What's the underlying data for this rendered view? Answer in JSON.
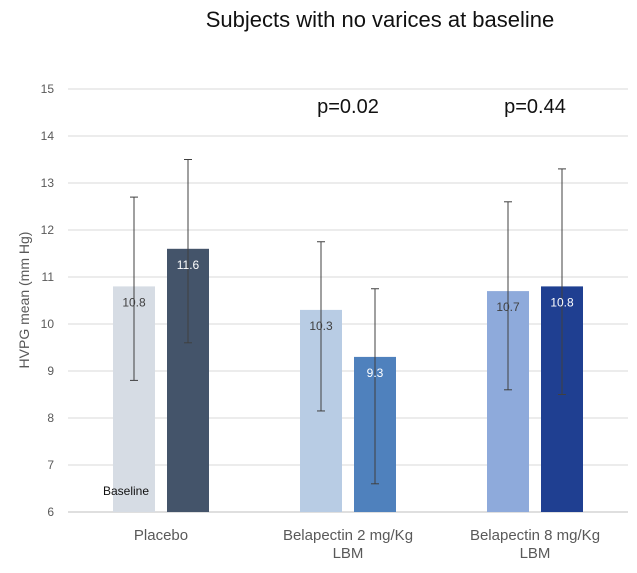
{
  "chart_data": {
    "type": "bar",
    "title": "Subjects with no varices at baseline",
    "ylabel": "HVPG mean (mm Hg)",
    "xlabel": "",
    "ylim": [
      6,
      15
    ],
    "yticks": [
      6,
      7,
      8,
      9,
      10,
      11,
      12,
      13,
      14,
      15
    ],
    "grid": true,
    "categories": [
      {
        "lines": [
          "Placebo"
        ]
      },
      {
        "lines": [
          "Belapectin 2 mg/Kg",
          "LBM"
        ]
      },
      {
        "lines": [
          "Belapectin 8 mg/Kg",
          "LBM"
        ]
      }
    ],
    "groups": [
      {
        "bars": [
          {
            "value": 10.8,
            "label": "10.8",
            "err_low": 8.8,
            "err_high": 12.7,
            "color": "#d6dce4",
            "label_color": "#404040"
          },
          {
            "value": 11.6,
            "label": "11.6",
            "err_low": 9.6,
            "err_high": 13.5,
            "color": "#44546a",
            "label_color": "#ffffff"
          }
        ],
        "pvalue": ""
      },
      {
        "bars": [
          {
            "value": 10.3,
            "label": "10.3",
            "err_low": 8.15,
            "err_high": 11.75,
            "color": "#b8cce4",
            "label_color": "#404040"
          },
          {
            "value": 9.3,
            "label": "9.3",
            "err_low": 6.6,
            "err_high": 10.75,
            "color": "#4f81bd",
            "label_color": "#ffffff"
          }
        ],
        "pvalue": "p=0.02"
      },
      {
        "bars": [
          {
            "value": 10.7,
            "label": "10.7",
            "err_low": 8.6,
            "err_high": 12.6,
            "color": "#8eaadb",
            "label_color": "#404040"
          },
          {
            "value": 10.8,
            "label": "10.8",
            "err_low": 8.5,
            "err_high": 13.3,
            "color": "#1f3f91",
            "label_color": "#ffffff"
          }
        ],
        "pvalue": "p=0.44"
      }
    ],
    "annotations": [
      {
        "text": "Baseline",
        "group": 0,
        "bar": 0,
        "y": 6.45
      }
    ],
    "colors": {
      "gridline": "#d9d9d9",
      "axis": "#bfbfbf",
      "error_bar": "#404040"
    }
  }
}
